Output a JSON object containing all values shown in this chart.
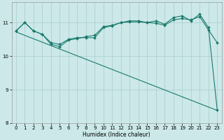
{
  "title": "",
  "xlabel": "Humidex (Indice chaleur)",
  "bg_color": "#cce8e8",
  "line_color": "#1a7a6e",
  "grid_color": "#aacccc",
  "xlim": [
    -0.5,
    23.5
  ],
  "ylim": [
    8.0,
    11.6
  ],
  "yticks": [
    8,
    9,
    10,
    11
  ],
  "xticks": [
    0,
    1,
    2,
    3,
    4,
    5,
    6,
    7,
    8,
    9,
    10,
    11,
    12,
    13,
    14,
    15,
    16,
    17,
    18,
    19,
    20,
    21,
    22,
    23
  ],
  "line1_x": [
    0,
    1,
    2,
    3,
    4,
    5,
    6,
    7,
    8,
    9,
    10,
    11,
    12,
    13,
    14,
    15,
    16,
    17,
    18,
    19,
    20,
    21,
    22,
    23
  ],
  "line1_y": [
    10.75,
    11.0,
    10.75,
    10.65,
    10.4,
    10.35,
    10.5,
    10.55,
    10.55,
    10.55,
    10.85,
    10.9,
    11.0,
    11.05,
    11.05,
    11.0,
    11.05,
    10.95,
    11.15,
    11.2,
    11.05,
    11.25,
    10.85,
    8.4
  ],
  "line2_x": [
    0,
    1,
    2,
    3,
    4,
    5,
    6,
    7,
    8,
    9,
    10,
    11,
    12,
    13,
    14,
    15,
    16,
    17,
    18,
    19,
    20,
    21,
    22,
    23
  ],
  "line2_y": [
    10.75,
    11.0,
    10.75,
    10.65,
    10.35,
    10.28,
    10.48,
    10.52,
    10.58,
    10.62,
    10.88,
    10.92,
    11.0,
    11.02,
    11.02,
    11.0,
    10.98,
    10.92,
    11.08,
    11.12,
    11.08,
    11.18,
    10.78,
    10.4
  ],
  "line3_x": [
    0,
    23
  ],
  "line3_y": [
    10.72,
    8.38
  ],
  "marker": "D",
  "markersize": 2.0,
  "linewidth": 0.8,
  "xlabel_fontsize": 5.5,
  "tick_labelsize": 5.0
}
